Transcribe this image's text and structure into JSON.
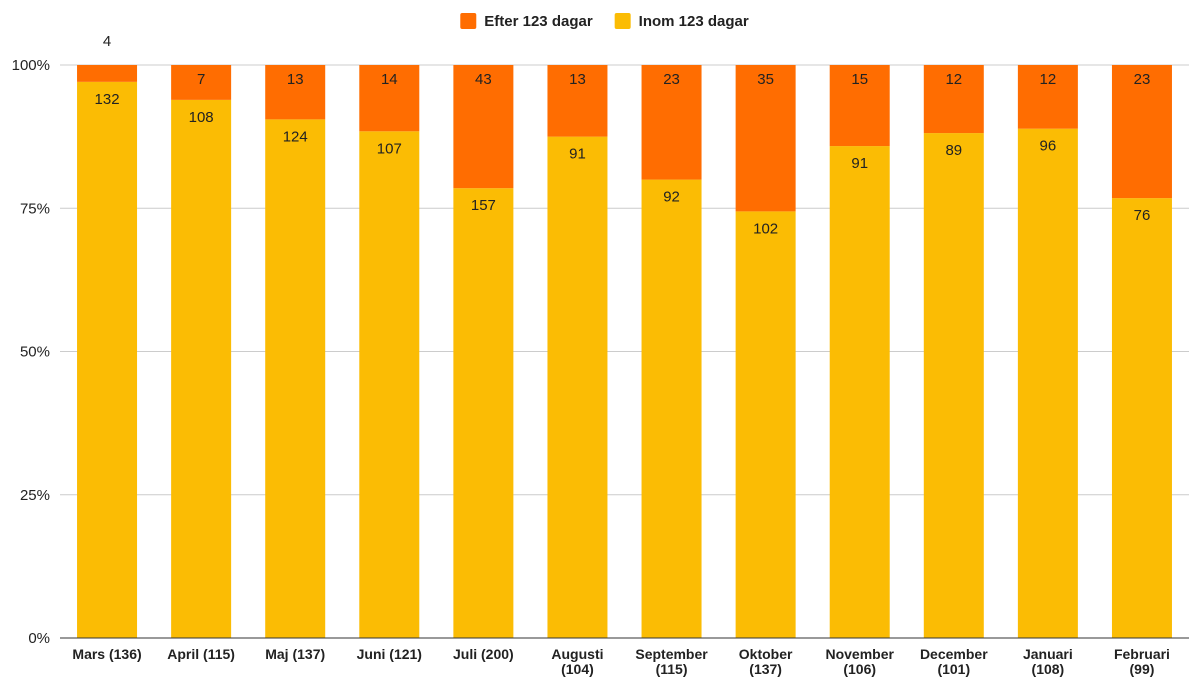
{
  "chart_data": {
    "type": "bar",
    "stacked": "percent",
    "categories": [
      [
        "Mars (136)"
      ],
      [
        "April (115)"
      ],
      [
        "Maj (137)"
      ],
      [
        "Juni (121)"
      ],
      [
        "Juli (200)"
      ],
      [
        "Augusti",
        "(104)"
      ],
      [
        "September",
        "(115)"
      ],
      [
        "Oktober",
        "(137)"
      ],
      [
        "November",
        "(106)"
      ],
      [
        "December",
        "(101)"
      ],
      [
        "Januari",
        "(108)"
      ],
      [
        "Februari",
        "(99)"
      ]
    ],
    "series": [
      {
        "name": "Inom 123 dagar",
        "color": "#fbbc04",
        "values": [
          132,
          108,
          124,
          107,
          157,
          91,
          92,
          102,
          91,
          89,
          96,
          76
        ]
      },
      {
        "name": "Efter 123 dagar",
        "color": "#ff6d01",
        "values": [
          4,
          7,
          13,
          14,
          43,
          13,
          23,
          35,
          15,
          12,
          12,
          23
        ]
      }
    ],
    "legend_order": [
      1,
      0
    ],
    "yticks": [
      "0%",
      "25%",
      "50%",
      "75%",
      "100%"
    ],
    "ylim": [
      0,
      100
    ],
    "grid": true,
    "legend_position": "top-center"
  }
}
